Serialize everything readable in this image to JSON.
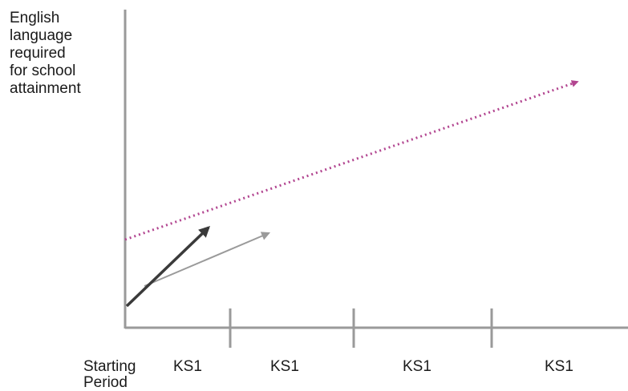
{
  "diagram": {
    "y_axis_title_lines": [
      "English",
      "language",
      "required",
      "for school",
      "attainment"
    ],
    "x_axis_labels": [
      "Starting Period",
      "KS1",
      "KS1",
      "KS1",
      "KS1"
    ],
    "colors": {
      "axis": "#9a9a9a",
      "target_line": "#b24590",
      "dark_arrow": "#3a3a3a",
      "light_arrow": "#9a9a9a",
      "text": "#1a1a1a"
    }
  }
}
